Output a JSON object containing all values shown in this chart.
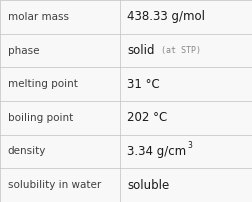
{
  "rows": [
    {
      "label": "molar mass",
      "value": "438.33 g/mol",
      "type": "plain"
    },
    {
      "label": "phase",
      "value": "solid",
      "type": "suffix",
      "suffix": "(at STP)"
    },
    {
      "label": "melting point",
      "value": "31 °C",
      "type": "plain"
    },
    {
      "label": "boiling point",
      "value": "202 °C",
      "type": "plain"
    },
    {
      "label": "density",
      "value": "3.34 g/cm",
      "type": "super",
      "superscript": "3"
    },
    {
      "label": "solubility in water",
      "value": "soluble",
      "type": "plain"
    }
  ],
  "col_split": 0.475,
  "bg_color": "#f8f8f8",
  "border_color": "#c0c0c0",
  "label_color": "#404040",
  "value_color": "#1a1a1a",
  "suffix_color": "#888888",
  "label_fontsize": 7.5,
  "value_fontsize": 8.5,
  "suffix_fontsize": 6.0,
  "super_fontsize": 5.5,
  "figwidth": 2.52,
  "figheight": 2.02,
  "dpi": 100
}
